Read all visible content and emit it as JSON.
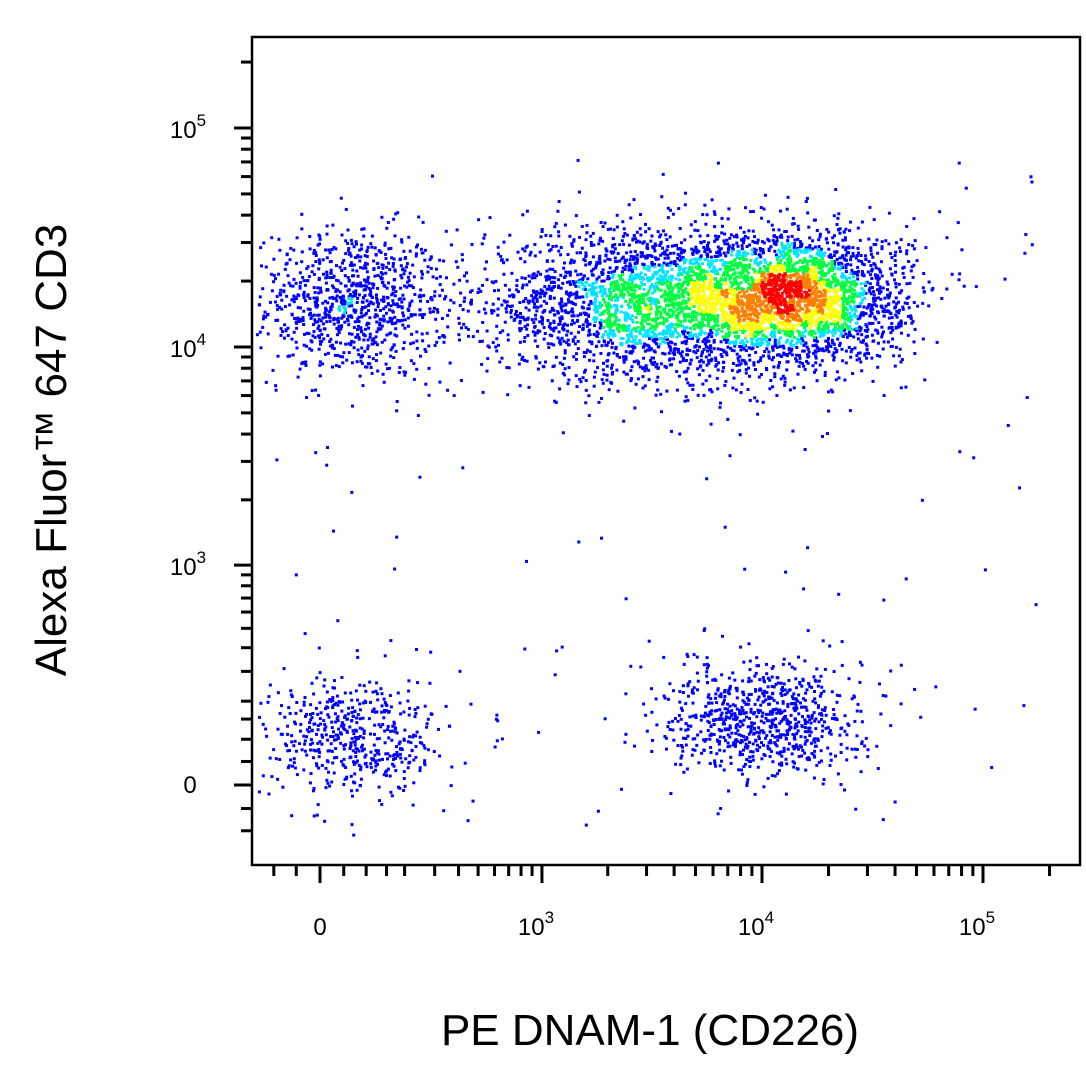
{
  "chart_data": {
    "type": "scatter",
    "subtype": "flow-cytometry pseudocolor density dot plot",
    "xlabel": "PE  DNAM-1 (CD226)",
    "ylabel": "Alexa Fluor™ 647  CD3",
    "x_scale": "biexponential",
    "y_scale": "biexponential",
    "x_ticks": [
      {
        "value": 0,
        "label": "0"
      },
      {
        "value": 1000,
        "label": "10",
        "exp": "3"
      },
      {
        "value": 10000,
        "label": "10",
        "exp": "4"
      },
      {
        "value": 100000,
        "label": "10",
        "exp": "5"
      }
    ],
    "y_ticks": [
      {
        "value": 0,
        "label": "0"
      },
      {
        "value": 1000,
        "label": "10",
        "exp": "3"
      },
      {
        "value": 10000,
        "label": "10",
        "exp": "4"
      },
      {
        "value": 100000,
        "label": "10",
        "exp": "5"
      }
    ],
    "xlim": [
      -150,
      262144
    ],
    "ylim": [
      -150,
      262144
    ],
    "grid": false,
    "density_colors": [
      "#0000ff",
      "#00e5ff",
      "#00ff40",
      "#ffff00",
      "#ff8000",
      "#ff0000"
    ],
    "populations": [
      {
        "description": "CD3+ DNAM-1-",
        "x_center": 65,
        "y_center": 16000,
        "events": 900
      },
      {
        "description": "CD3+ DNAM-1+ (dim)",
        "x_center": 3200,
        "y_center": 16000,
        "events": 2600
      },
      {
        "description": "CD3+ DNAM-1+ (bright)",
        "x_center": 14000,
        "y_center": 17000,
        "events": 2400
      },
      {
        "description": "CD3- DNAM-1-",
        "x_center": 75,
        "y_center": 110,
        "events": 500
      },
      {
        "description": "CD3- DNAM-1+",
        "x_center": 10000,
        "y_center": 150,
        "events": 800
      }
    ]
  }
}
